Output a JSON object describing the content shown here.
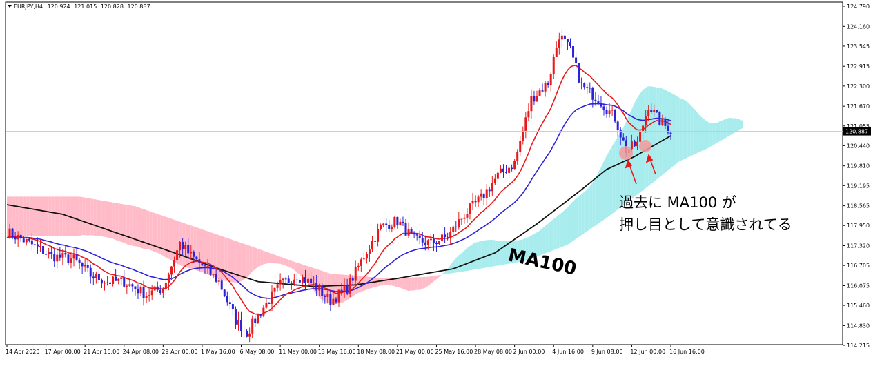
{
  "header": {
    "symbol": "EURJPY,H4",
    "open": "120.924",
    "high": "121.015",
    "low": "120.828",
    "close": "120.887"
  },
  "current_price_label": "120.887",
  "annotation": {
    "line1": "過去に MA100 が",
    "line2": "押し目として意識されてる",
    "ma_label": "MA100"
  },
  "colors": {
    "ma_fast": "#e8191b",
    "ma_mid": "#2d22d8",
    "ma100": "#111111",
    "cloud_bull": "#a8ecee",
    "cloud_bear": "#ffbcc8",
    "candle_up": "#e8191b",
    "candle_down": "#2d22d8",
    "arrow": "#e8191b",
    "highlight": "#f39a9a"
  },
  "chart_data": {
    "type": "candlestick",
    "title": "EURJPY,H4",
    "xlabel": "",
    "ylabel": "",
    "ylim": [
      114.215,
      124.79
    ],
    "grid": false,
    "y_ticks": [
      124.79,
      124.16,
      123.545,
      122.915,
      122.3,
      121.67,
      121.055,
      120.44,
      119.81,
      119.195,
      118.565,
      117.95,
      117.32,
      116.705,
      116.075,
      115.46,
      114.83,
      114.215
    ],
    "y_tick_labels": [
      "124.790",
      "124.160",
      "123.545",
      "122.915",
      "122.300",
      "121.670",
      "121.055",
      "120.440",
      "119.810",
      "119.195",
      "118.565",
      "117.950",
      "117.320",
      "116.705",
      "116.075",
      "115.460",
      "114.830",
      "114.215"
    ],
    "x_tick_labels": [
      "14 Apr 2020",
      "17 Apr 00:00",
      "21 Apr 16:00",
      "24 Apr 08:00",
      "29 Apr 00:00",
      "1 May 16:00",
      "6 May 08:00",
      "11 May 00:00",
      "13 May 16:00",
      "18 May 08:00",
      "21 May 00:00",
      "25 May 16:00",
      "28 May 08:00",
      "2 Jun 00:00",
      "4 Jun 16:00",
      "9 Jun 08:00",
      "12 Jun 00:00",
      "16 Jun 16:00"
    ],
    "x_tick_index": [
      0,
      14,
      28,
      42,
      56,
      70,
      84,
      98,
      112,
      126,
      140,
      154,
      168,
      182,
      196,
      210,
      224,
      238
    ],
    "close_anchors": [
      [
        0,
        117.75
      ],
      [
        8,
        117.4
      ],
      [
        16,
        117.0
      ],
      [
        24,
        116.9
      ],
      [
        30,
        116.4
      ],
      [
        36,
        116.2
      ],
      [
        42,
        116.2
      ],
      [
        50,
        115.8
      ],
      [
        56,
        116.0
      ],
      [
        62,
        117.4
      ],
      [
        66,
        117.0
      ],
      [
        70,
        116.7
      ],
      [
        76,
        116.2
      ],
      [
        82,
        115.0
      ],
      [
        86,
        114.6
      ],
      [
        92,
        115.4
      ],
      [
        98,
        116.1
      ],
      [
        104,
        116.4
      ],
      [
        110,
        116.1
      ],
      [
        116,
        115.6
      ],
      [
        122,
        116.0
      ],
      [
        128,
        117.0
      ],
      [
        134,
        117.9
      ],
      [
        140,
        118.1
      ],
      [
        146,
        117.5
      ],
      [
        152,
        117.4
      ],
      [
        158,
        117.6
      ],
      [
        164,
        118.3
      ],
      [
        170,
        118.8
      ],
      [
        176,
        119.5
      ],
      [
        182,
        119.9
      ],
      [
        188,
        121.9
      ],
      [
        194,
        122.4
      ],
      [
        198,
        123.9
      ],
      [
        202,
        123.4
      ],
      [
        206,
        122.3
      ],
      [
        212,
        121.9
      ],
      [
        218,
        121.3
      ],
      [
        222,
        120.3
      ],
      [
        226,
        120.5
      ],
      [
        230,
        121.7
      ],
      [
        234,
        121.2
      ],
      [
        238,
        120.9
      ]
    ],
    "series": [
      {
        "name": "MA100",
        "values_at": [
          [
            0,
            118.6
          ],
          [
            20,
            118.3
          ],
          [
            40,
            117.7
          ],
          [
            60,
            117.1
          ],
          [
            76,
            116.6
          ],
          [
            90,
            116.2
          ],
          [
            110,
            116.05
          ],
          [
            125,
            116.1
          ],
          [
            140,
            116.3
          ],
          [
            160,
            116.6
          ],
          [
            175,
            117.1
          ],
          [
            190,
            118.0
          ],
          [
            205,
            119.0
          ],
          [
            215,
            119.7
          ],
          [
            225,
            120.1
          ],
          [
            238,
            120.75
          ]
        ]
      }
    ],
    "annotations": [
      "過去に MA100 が 押し目として意識されてる",
      "MA100"
    ]
  }
}
